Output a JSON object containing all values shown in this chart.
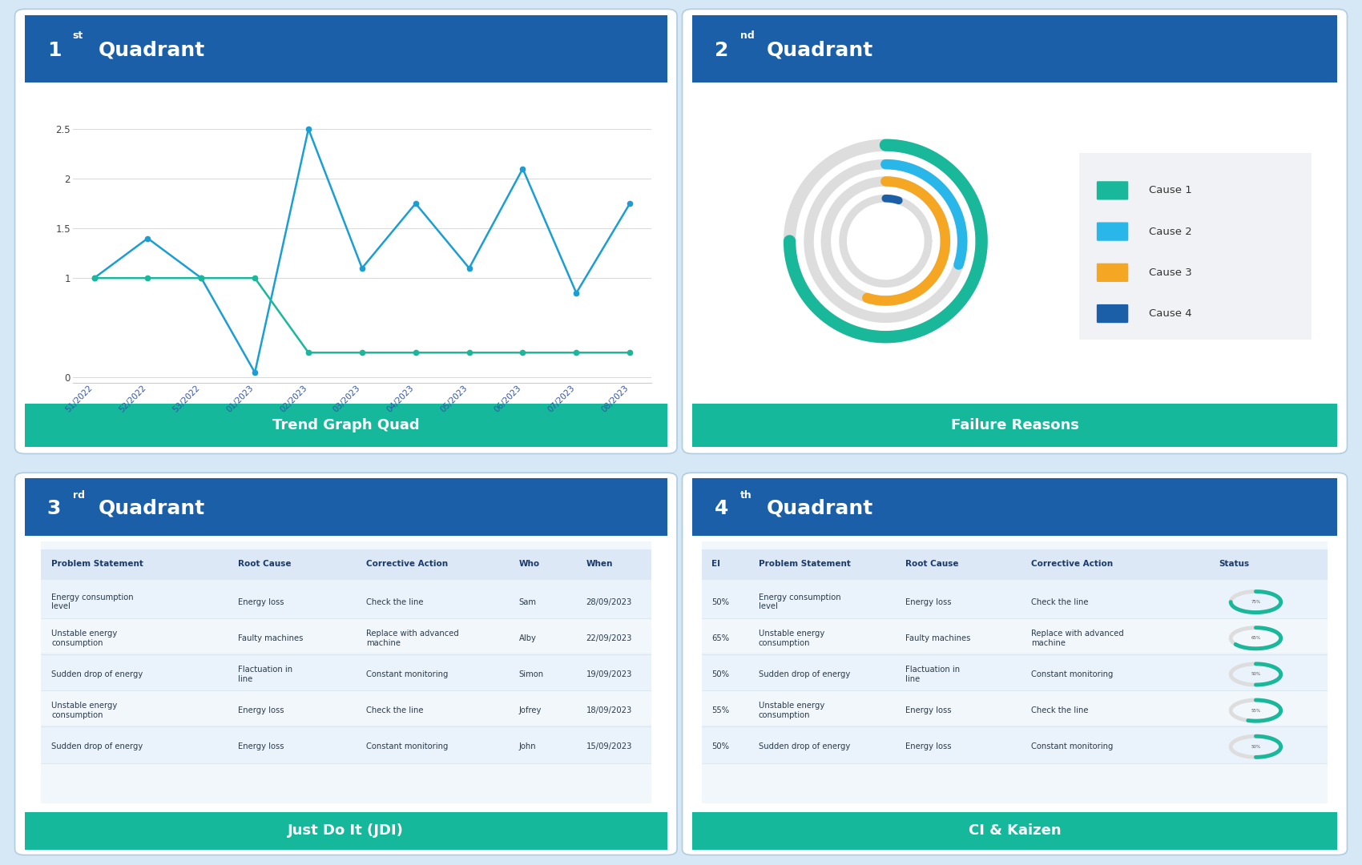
{
  "bg_color": "#d6e8f5",
  "panel_bg": "#ffffff",
  "header_blue": "#1a5fa8",
  "header_green": "#15b89a",
  "q1_subtitle": "Trend Graph Quad",
  "q2_subtitle": "Failure Reasons",
  "q3_subtitle": "Just Do It (JDI)",
  "q4_subtitle": "CI & Kaizen",
  "line1_x": [
    0,
    1,
    2,
    3,
    4,
    5,
    6,
    7,
    8,
    9,
    10
  ],
  "line1_y": [
    1.0,
    1.4,
    1.0,
    0.05,
    2.5,
    1.1,
    1.75,
    1.1,
    2.1,
    0.85,
    1.75
  ],
  "line1_color": "#1a9ed4",
  "line2_x": [
    0,
    1,
    2,
    3,
    4,
    5,
    6,
    7,
    8,
    9,
    10
  ],
  "line2_y": [
    1.0,
    1.0,
    1.0,
    1.0,
    0.25,
    0.25,
    0.25,
    0.25,
    0.25,
    0.25,
    0.25
  ],
  "line2_color": "#1ab89a",
  "x_labels": [
    "51/2022",
    "52/2022",
    "53/2022",
    "01/2023",
    "02/2023",
    "03/2023",
    "04/2023",
    "05/2023",
    "06/2023",
    "07/2023",
    "08/2023"
  ],
  "donut_colors": [
    "#1ab89a",
    "#29b6e8",
    "#f5a623",
    "#1a5fa8"
  ],
  "donut_labels": [
    "Cause 1",
    "Cause 2",
    "Cause 3",
    "Cause 4"
  ],
  "donut_values": [
    75,
    30,
    55,
    5
  ],
  "q3_headers": [
    "Problem Statement",
    "Root Cause",
    "Corrective Action",
    "Who",
    "When"
  ],
  "q3_rows": [
    [
      "Energy consumption\nlevel",
      "Energy loss",
      "Check the line",
      "Sam",
      "28/09/2023"
    ],
    [
      "Unstable energy\nconsumption",
      "Faulty machines",
      "Replace with advanced\nmachine",
      "Alby",
      "22/09/2023"
    ],
    [
      "Sudden drop of energy",
      "Flactuation in\nline",
      "Constant monitoring",
      "Simon",
      "19/09/2023"
    ],
    [
      "Unstable energy\nconsumption",
      "Energy loss",
      "Check the line",
      "Jofrey",
      "18/09/2023"
    ],
    [
      "Sudden drop of energy",
      "Energy loss",
      "Constant monitoring",
      "John",
      "15/09/2023"
    ]
  ],
  "q4_headers": [
    "EI",
    "Problem Statement",
    "Root Cause",
    "Corrective Action",
    "Status"
  ],
  "q4_rows": [
    [
      "50%",
      "Energy consumption\nlevel",
      "Energy loss",
      "Check the line",
      "75%"
    ],
    [
      "65%",
      "Unstable energy\nconsumption",
      "Faulty machines",
      "Replace with advanced\nmachine",
      "65%"
    ],
    [
      "50%",
      "Sudden drop of energy",
      "Flactuation in\nline",
      "Constant monitoring",
      "50%"
    ],
    [
      "55%",
      "Unstable energy\nconsumption",
      "Energy loss",
      "Check the line",
      "55%"
    ],
    [
      "50%",
      "Sudden drop of energy",
      "Energy loss",
      "Constant monitoring",
      "50%"
    ]
  ],
  "q4_status_colors": [
    "#1ab89a",
    "#1ab89a",
    "#1ab89a",
    "#1ab89a",
    "#1ab89a"
  ],
  "q4_status_values": [
    75,
    65,
    50,
    55,
    50
  ]
}
